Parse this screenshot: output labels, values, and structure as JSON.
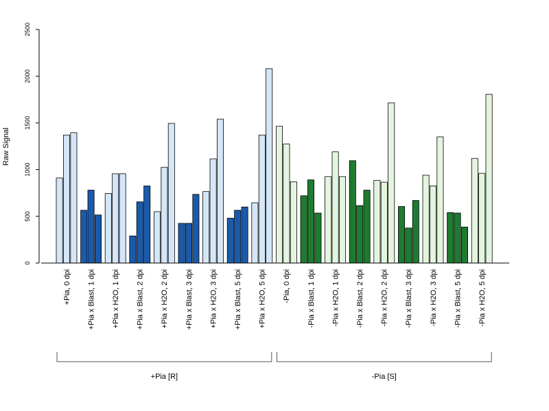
{
  "chart_data": {
    "type": "bar",
    "ylabel": "Raw Signal",
    "ylim": [
      0,
      2500
    ],
    "yticks": [
      0,
      500,
      1000,
      1500,
      2000,
      2500
    ],
    "grid": false,
    "categories": [
      "+Pia, 0 dpi",
      "+Pia x Blast, 1 dpi",
      "+Pia x H2O, 1 dpi",
      "+Pia x Blast, 2 dpi",
      "+Pia x H2O, 2 dpi",
      "+Pia x Blast, 3 dpi",
      "+Pia x H2O, 3 dpi",
      "+Pia x Blast, 5 dpi",
      "+Pia x H2O, 5 dpi",
      "-Pia, 0 dpi",
      "-Pia x Blast, 1 dpi",
      "-Pia x H2O, 1 dpi",
      "-Pia x Blast, 2 dpi",
      "-Pia x H2O, 2 dpi",
      "-Pia x Blast, 3 dpi",
      "-Pia x H2O, 3 dpi",
      "-Pia x Blast, 5 dpi",
      "-Pia x H2O, 5 dpi"
    ],
    "replicates": [
      [
        910,
        1370,
        1395
      ],
      [
        565,
        780,
        515
      ],
      [
        745,
        955,
        955
      ],
      [
        290,
        655,
        825
      ],
      [
        550,
        1025,
        1495
      ],
      [
        425,
        425,
        735
      ],
      [
        765,
        1115,
        1540
      ],
      [
        480,
        565,
        600
      ],
      [
        645,
        1370,
        2080
      ],
      [
        1465,
        1275,
        870
      ],
      [
        720,
        890,
        535
      ],
      [
        925,
        1190,
        925
      ],
      [
        1095,
        615,
        780
      ],
      [
        885,
        865,
        1715
      ],
      [
        605,
        375,
        670
      ],
      [
        940,
        825,
        1350
      ],
      [
        540,
        535,
        385
      ],
      [
        1120,
        960,
        1805
      ]
    ],
    "bar_colors": [
      "#d4e6f7",
      "#1a5aab",
      "#d4e6f7",
      "#1a5aab",
      "#d4e6f7",
      "#1a5aab",
      "#d4e6f7",
      "#1a5aab",
      "#d4e6f7",
      "#e3f5df",
      "#1e7b30",
      "#e3f5df",
      "#1e7b30",
      "#e3f5df",
      "#1e7b30",
      "#e3f5df",
      "#1e7b30",
      "#e3f5df"
    ],
    "groups": [
      {
        "label": "+Pia [R]",
        "first": 0,
        "last": 8
      },
      {
        "label": "-Pia [S]",
        "first": 9,
        "last": 17
      }
    ]
  }
}
